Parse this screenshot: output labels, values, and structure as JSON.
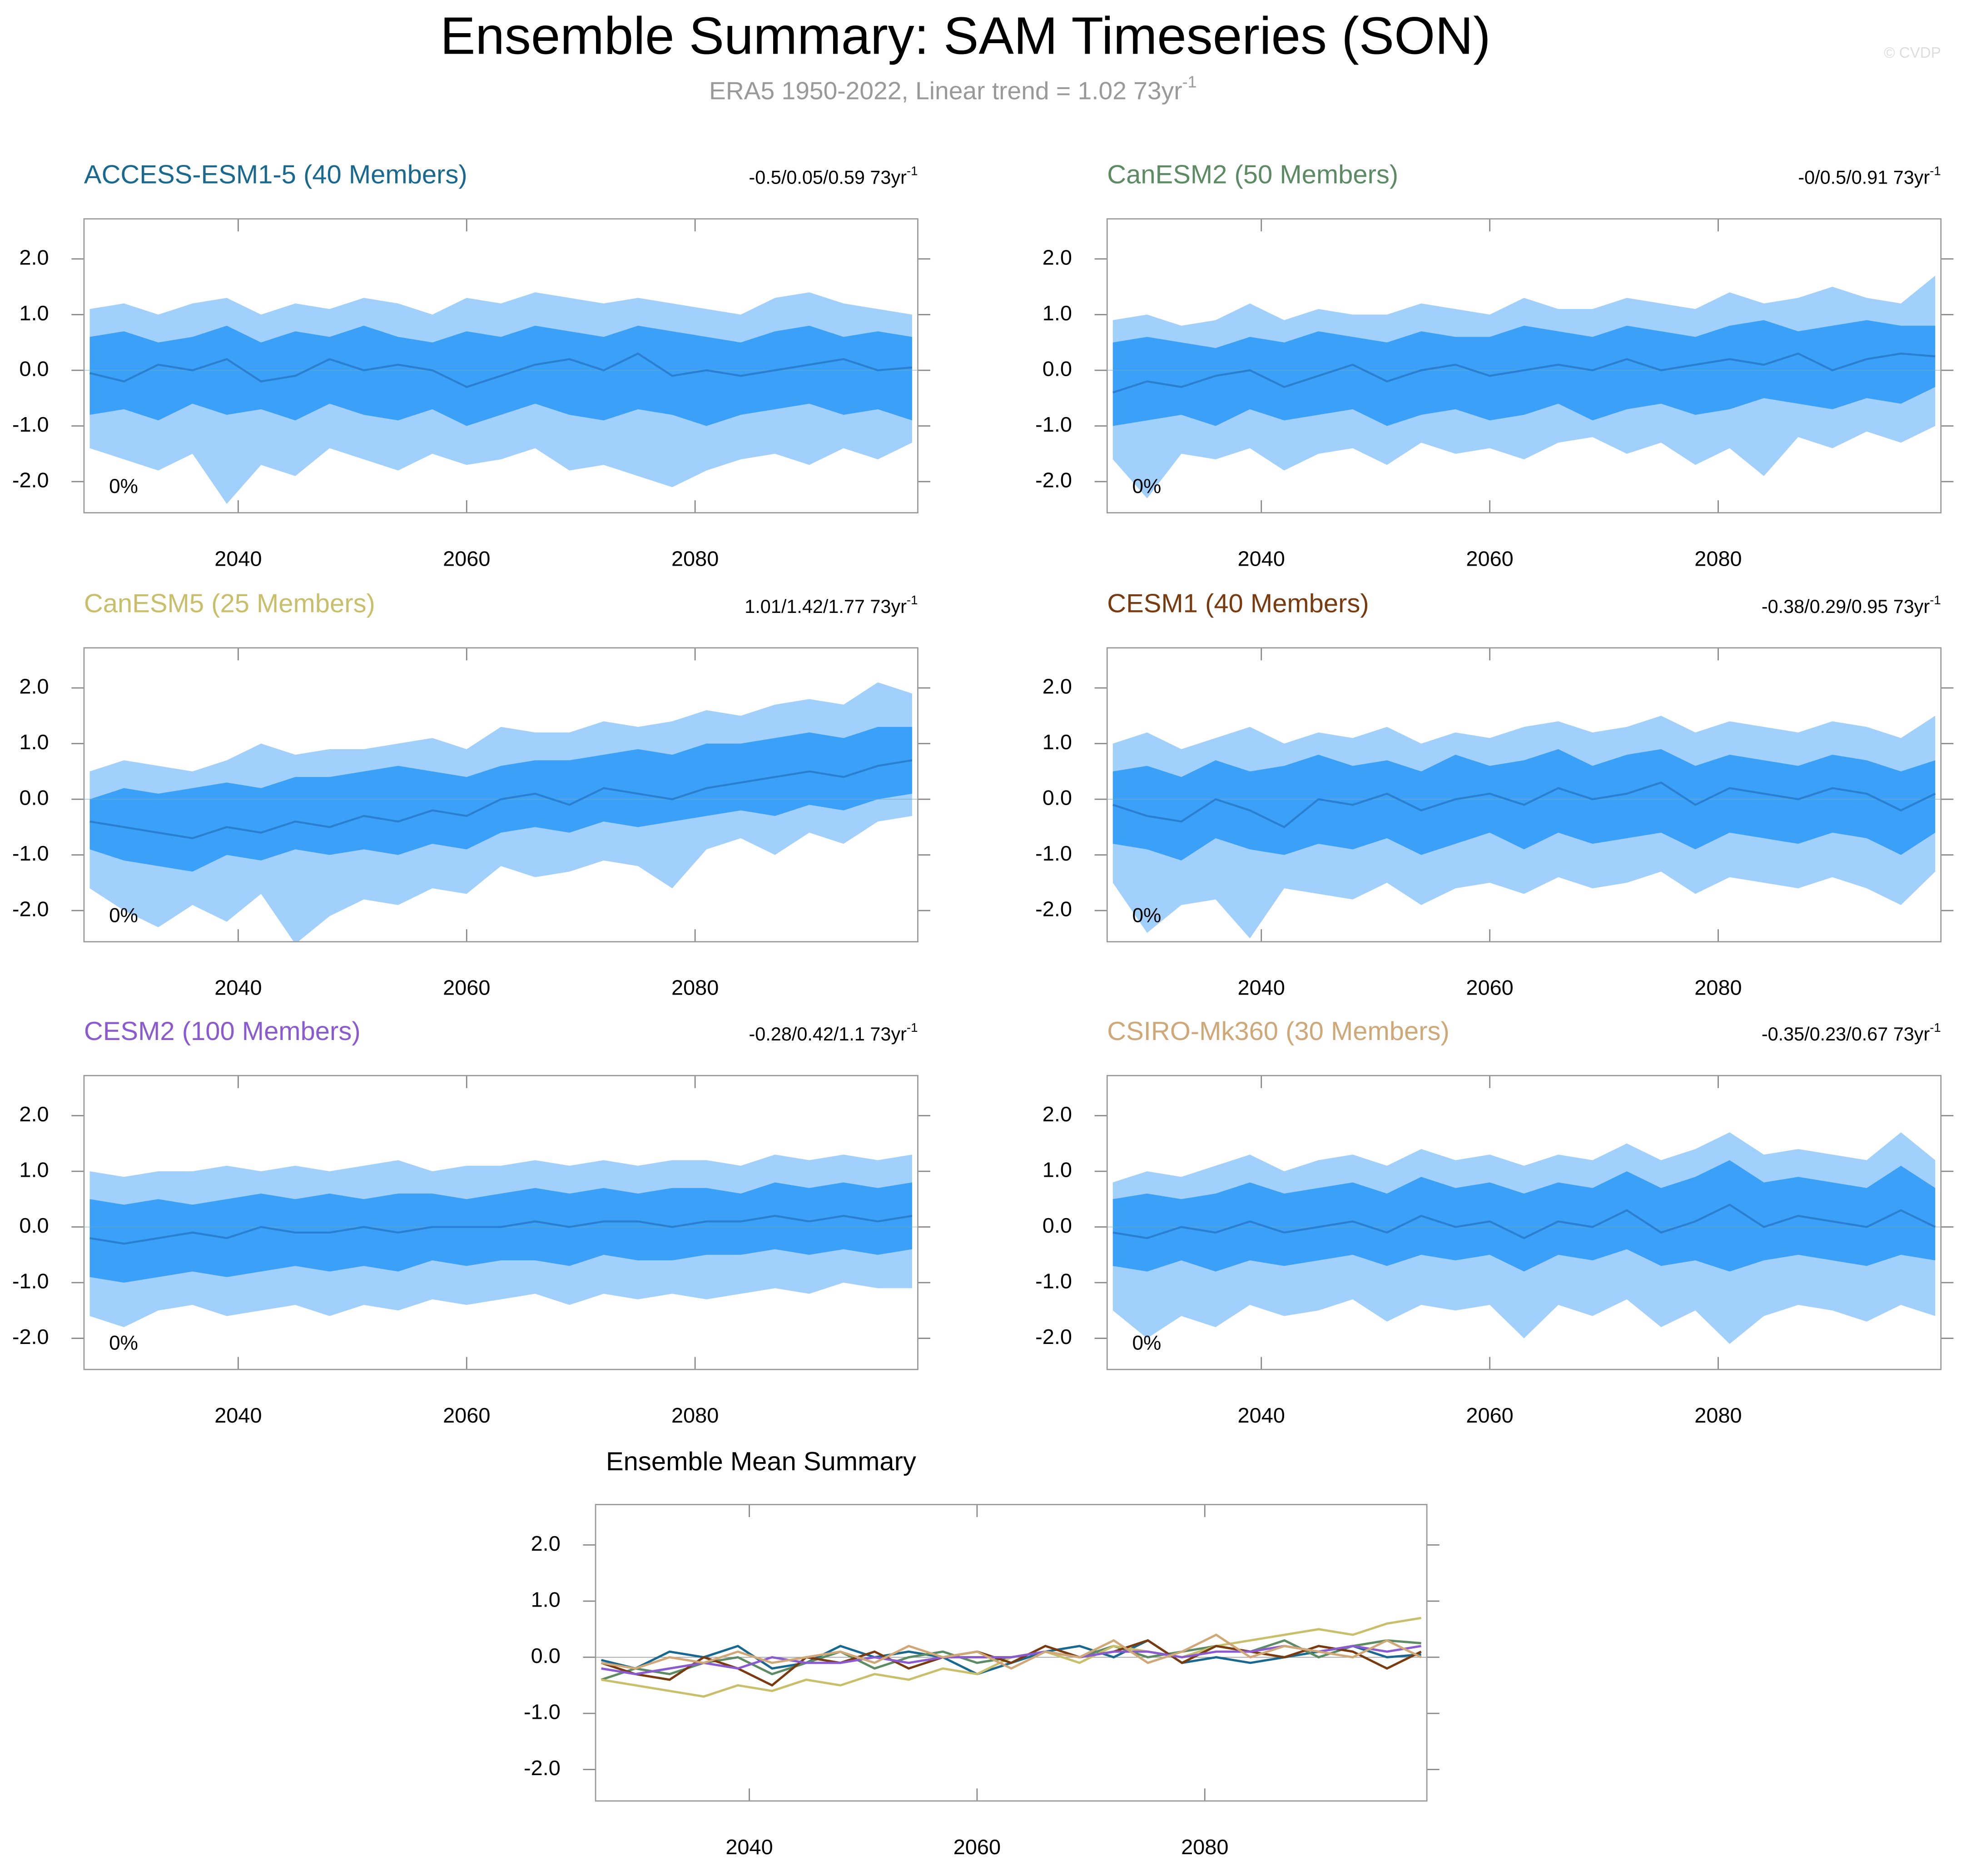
{
  "title": "Ensemble Summary: SAM Timeseries (SON)",
  "subtitle": "ERA5 1950-2022, Linear trend = 1.02 73yr",
  "subtitle_exponent": "-1",
  "watermark": "© CVDP",
  "band_colors": {
    "outer": "#a0d0fb",
    "inner": "#3ba0f8",
    "mean": "#2b7fd0"
  },
  "chart_data": [
    {
      "type": "band",
      "title": "ACCESS-ESM1-5 (40 Members)",
      "title_color": "#19688f",
      "trend": "-0.5/0.05/0.59 73yr",
      "trend_exponent": "-1",
      "note": "0%",
      "xlim": [
        2026.5,
        2099.5
      ],
      "xticks": [
        2040,
        2060,
        2080
      ],
      "ylim": [
        -2.56,
        2.72
      ],
      "yticks": [
        {
          "value": -2,
          "label": "-2.0"
        },
        {
          "value": -1,
          "label": "-1.0"
        },
        {
          "value": 0,
          "label": "0.0"
        },
        {
          "value": 1,
          "label": "1.0"
        },
        {
          "value": 2,
          "label": "2.0"
        }
      ],
      "x": [
        2027,
        2030,
        2033,
        2036,
        2039,
        2042,
        2045,
        2048,
        2051,
        2054,
        2057,
        2060,
        2063,
        2066,
        2069,
        2072,
        2075,
        2078,
        2081,
        2084,
        2087,
        2090,
        2093,
        2096,
        2099
      ],
      "mean": [
        -0.05,
        -0.2,
        0.1,
        0.0,
        0.2,
        -0.2,
        -0.1,
        0.2,
        0.0,
        0.1,
        0.0,
        -0.3,
        -0.1,
        0.1,
        0.2,
        0.0,
        0.3,
        -0.1,
        0.0,
        -0.1,
        0.0,
        0.1,
        0.2,
        0.0,
        0.05
      ],
      "inner_high": [
        0.6,
        0.7,
        0.5,
        0.6,
        0.8,
        0.5,
        0.7,
        0.6,
        0.8,
        0.6,
        0.5,
        0.7,
        0.6,
        0.8,
        0.7,
        0.6,
        0.8,
        0.7,
        0.6,
        0.5,
        0.7,
        0.8,
        0.6,
        0.7,
        0.6
      ],
      "inner_low": [
        -0.8,
        -0.7,
        -0.9,
        -0.6,
        -0.8,
        -0.7,
        -0.9,
        -0.6,
        -0.8,
        -0.9,
        -0.7,
        -1.0,
        -0.8,
        -0.6,
        -0.8,
        -0.9,
        -0.7,
        -0.8,
        -1.0,
        -0.8,
        -0.7,
        -0.6,
        -0.8,
        -0.7,
        -0.9
      ],
      "outer_high": [
        1.1,
        1.2,
        1.0,
        1.2,
        1.3,
        1.0,
        1.2,
        1.1,
        1.3,
        1.2,
        1.0,
        1.3,
        1.2,
        1.4,
        1.3,
        1.2,
        1.3,
        1.2,
        1.1,
        1.0,
        1.3,
        1.4,
        1.2,
        1.1,
        1.0
      ],
      "outer_low": [
        -1.4,
        -1.6,
        -1.8,
        -1.5,
        -2.4,
        -1.7,
        -1.9,
        -1.4,
        -1.6,
        -1.8,
        -1.5,
        -1.7,
        -1.6,
        -1.4,
        -1.8,
        -1.7,
        -1.9,
        -2.1,
        -1.8,
        -1.6,
        -1.5,
        -1.7,
        -1.4,
        -1.6,
        -1.3
      ]
    },
    {
      "type": "band",
      "title": "CanESM2 (50 Members)",
      "title_color": "#5b8a63",
      "trend": "-0/0.5/0.91 73yr",
      "trend_exponent": "-1",
      "note": "0%",
      "xlim": [
        2026.5,
        2099.5
      ],
      "xticks": [
        2040,
        2060,
        2080
      ],
      "ylim": [
        -2.56,
        2.72
      ],
      "yticks": [
        {
          "value": -2,
          "label": "-2.0"
        },
        {
          "value": -1,
          "label": "-1.0"
        },
        {
          "value": 0,
          "label": "0.0"
        },
        {
          "value": 1,
          "label": "1.0"
        },
        {
          "value": 2,
          "label": "2.0"
        }
      ],
      "x": [
        2027,
        2030,
        2033,
        2036,
        2039,
        2042,
        2045,
        2048,
        2051,
        2054,
        2057,
        2060,
        2063,
        2066,
        2069,
        2072,
        2075,
        2078,
        2081,
        2084,
        2087,
        2090,
        2093,
        2096,
        2099
      ],
      "mean": [
        -0.4,
        -0.2,
        -0.3,
        -0.1,
        0.0,
        -0.3,
        -0.1,
        0.1,
        -0.2,
        0.0,
        0.1,
        -0.1,
        0.0,
        0.1,
        0.0,
        0.2,
        0.0,
        0.1,
        0.2,
        0.1,
        0.3,
        0.0,
        0.2,
        0.3,
        0.25
      ],
      "inner_high": [
        0.5,
        0.6,
        0.5,
        0.4,
        0.6,
        0.5,
        0.7,
        0.6,
        0.5,
        0.7,
        0.6,
        0.6,
        0.8,
        0.7,
        0.6,
        0.8,
        0.7,
        0.6,
        0.8,
        0.9,
        0.7,
        0.8,
        0.9,
        0.8,
        0.8
      ],
      "inner_low": [
        -1.0,
        -0.9,
        -0.8,
        -1.0,
        -0.7,
        -0.9,
        -0.8,
        -0.7,
        -1.0,
        -0.8,
        -0.7,
        -0.9,
        -0.8,
        -0.6,
        -0.9,
        -0.7,
        -0.6,
        -0.8,
        -0.7,
        -0.5,
        -0.6,
        -0.7,
        -0.5,
        -0.6,
        -0.3
      ],
      "outer_high": [
        0.9,
        1.0,
        0.8,
        0.9,
        1.2,
        0.9,
        1.1,
        1.0,
        1.0,
        1.2,
        1.1,
        1.0,
        1.3,
        1.1,
        1.1,
        1.3,
        1.2,
        1.1,
        1.4,
        1.2,
        1.3,
        1.5,
        1.3,
        1.2,
        1.7
      ],
      "outer_low": [
        -1.6,
        -2.3,
        -1.5,
        -1.6,
        -1.4,
        -1.8,
        -1.5,
        -1.4,
        -1.7,
        -1.3,
        -1.5,
        -1.4,
        -1.6,
        -1.3,
        -1.2,
        -1.5,
        -1.3,
        -1.7,
        -1.4,
        -1.9,
        -1.2,
        -1.4,
        -1.1,
        -1.3,
        -1.0
      ]
    },
    {
      "type": "band",
      "title": "CanESM5 (25 Members)",
      "title_color": "#c9bf6a",
      "trend": "1.01/1.42/1.77 73yr",
      "trend_exponent": "-1",
      "note": "0%",
      "xlim": [
        2026.5,
        2099.5
      ],
      "xticks": [
        2040,
        2060,
        2080
      ],
      "ylim": [
        -2.56,
        2.72
      ],
      "yticks": [
        {
          "value": -2,
          "label": "-2.0"
        },
        {
          "value": -1,
          "label": "-1.0"
        },
        {
          "value": 0,
          "label": "0.0"
        },
        {
          "value": 1,
          "label": "1.0"
        },
        {
          "value": 2,
          "label": "2.0"
        }
      ],
      "x": [
        2027,
        2030,
        2033,
        2036,
        2039,
        2042,
        2045,
        2048,
        2051,
        2054,
        2057,
        2060,
        2063,
        2066,
        2069,
        2072,
        2075,
        2078,
        2081,
        2084,
        2087,
        2090,
        2093,
        2096,
        2099
      ],
      "mean": [
        -0.4,
        -0.5,
        -0.6,
        -0.7,
        -0.5,
        -0.6,
        -0.4,
        -0.5,
        -0.3,
        -0.4,
        -0.2,
        -0.3,
        0.0,
        0.1,
        -0.1,
        0.2,
        0.1,
        0.0,
        0.2,
        0.3,
        0.4,
        0.5,
        0.4,
        0.6,
        0.7
      ],
      "inner_high": [
        0.0,
        0.2,
        0.1,
        0.2,
        0.3,
        0.2,
        0.4,
        0.4,
        0.5,
        0.6,
        0.5,
        0.4,
        0.6,
        0.7,
        0.7,
        0.8,
        0.9,
        0.8,
        1.0,
        1.0,
        1.1,
        1.2,
        1.1,
        1.3,
        1.3
      ],
      "inner_low": [
        -0.9,
        -1.1,
        -1.2,
        -1.3,
        -1.0,
        -1.1,
        -0.9,
        -1.0,
        -0.9,
        -1.0,
        -0.8,
        -0.9,
        -0.6,
        -0.5,
        -0.6,
        -0.4,
        -0.5,
        -0.4,
        -0.3,
        -0.2,
        -0.3,
        -0.1,
        -0.2,
        0.0,
        0.1
      ],
      "outer_high": [
        0.5,
        0.7,
        0.6,
        0.5,
        0.7,
        1.0,
        0.8,
        0.9,
        0.9,
        1.0,
        1.1,
        0.9,
        1.3,
        1.2,
        1.2,
        1.4,
        1.3,
        1.4,
        1.6,
        1.5,
        1.7,
        1.8,
        1.7,
        2.1,
        1.9
      ],
      "outer_low": [
        -1.6,
        -2.0,
        -2.3,
        -1.9,
        -2.2,
        -1.7,
        -2.6,
        -2.1,
        -1.8,
        -1.9,
        -1.6,
        -1.7,
        -1.2,
        -1.4,
        -1.3,
        -1.1,
        -1.2,
        -1.6,
        -0.9,
        -0.7,
        -1.0,
        -0.6,
        -0.8,
        -0.4,
        -0.3
      ]
    },
    {
      "type": "band",
      "title": "CESM1 (40 Members)",
      "title_color": "#7a3a10",
      "trend": "-0.38/0.29/0.95 73yr",
      "trend_exponent": "-1",
      "note": "0%",
      "xlim": [
        2026.5,
        2099.5
      ],
      "xticks": [
        2040,
        2060,
        2080
      ],
      "ylim": [
        -2.56,
        2.72
      ],
      "yticks": [
        {
          "value": -2,
          "label": "-2.0"
        },
        {
          "value": -1,
          "label": "-1.0"
        },
        {
          "value": 0,
          "label": "0.0"
        },
        {
          "value": 1,
          "label": "1.0"
        },
        {
          "value": 2,
          "label": "2.0"
        }
      ],
      "x": [
        2027,
        2030,
        2033,
        2036,
        2039,
        2042,
        2045,
        2048,
        2051,
        2054,
        2057,
        2060,
        2063,
        2066,
        2069,
        2072,
        2075,
        2078,
        2081,
        2084,
        2087,
        2090,
        2093,
        2096,
        2099
      ],
      "mean": [
        -0.1,
        -0.3,
        -0.4,
        0.0,
        -0.2,
        -0.5,
        0.0,
        -0.1,
        0.1,
        -0.2,
        0.0,
        0.1,
        -0.1,
        0.2,
        0.0,
        0.1,
        0.3,
        -0.1,
        0.2,
        0.1,
        0.0,
        0.2,
        0.1,
        -0.2,
        0.1
      ],
      "inner_high": [
        0.5,
        0.6,
        0.4,
        0.7,
        0.5,
        0.6,
        0.8,
        0.6,
        0.7,
        0.5,
        0.8,
        0.6,
        0.7,
        0.9,
        0.6,
        0.8,
        0.9,
        0.6,
        0.8,
        0.7,
        0.6,
        0.8,
        0.7,
        0.5,
        0.7
      ],
      "inner_low": [
        -0.8,
        -0.9,
        -1.1,
        -0.7,
        -0.9,
        -1.0,
        -0.8,
        -0.9,
        -0.7,
        -1.0,
        -0.8,
        -0.6,
        -0.9,
        -0.6,
        -0.8,
        -0.7,
        -0.6,
        -0.9,
        -0.6,
        -0.7,
        -0.8,
        -0.6,
        -0.7,
        -1.0,
        -0.6
      ],
      "outer_high": [
        1.0,
        1.2,
        0.9,
        1.1,
        1.3,
        1.0,
        1.2,
        1.1,
        1.3,
        1.0,
        1.2,
        1.1,
        1.3,
        1.4,
        1.2,
        1.3,
        1.5,
        1.2,
        1.4,
        1.3,
        1.2,
        1.4,
        1.3,
        1.1,
        1.5
      ],
      "outer_low": [
        -1.5,
        -2.4,
        -1.9,
        -1.8,
        -2.5,
        -1.6,
        -1.7,
        -1.8,
        -1.5,
        -1.9,
        -1.6,
        -1.5,
        -1.7,
        -1.4,
        -1.6,
        -1.5,
        -1.3,
        -1.7,
        -1.4,
        -1.5,
        -1.6,
        -1.4,
        -1.6,
        -1.9,
        -1.3
      ]
    },
    {
      "type": "band",
      "title": "CESM2 (100 Members)",
      "title_color": "#8a5ad0",
      "trend": "-0.28/0.42/1.1 73yr",
      "trend_exponent": "-1",
      "note": "0%",
      "xlim": [
        2026.5,
        2099.5
      ],
      "xticks": [
        2040,
        2060,
        2080
      ],
      "ylim": [
        -2.56,
        2.72
      ],
      "yticks": [
        {
          "value": -2,
          "label": "-2.0"
        },
        {
          "value": -1,
          "label": "-1.0"
        },
        {
          "value": 0,
          "label": "0.0"
        },
        {
          "value": 1,
          "label": "1.0"
        },
        {
          "value": 2,
          "label": "2.0"
        }
      ],
      "x": [
        2027,
        2030,
        2033,
        2036,
        2039,
        2042,
        2045,
        2048,
        2051,
        2054,
        2057,
        2060,
        2063,
        2066,
        2069,
        2072,
        2075,
        2078,
        2081,
        2084,
        2087,
        2090,
        2093,
        2096,
        2099
      ],
      "mean": [
        -0.2,
        -0.3,
        -0.2,
        -0.1,
        -0.2,
        0.0,
        -0.1,
        -0.1,
        0.0,
        -0.1,
        0.0,
        0.0,
        0.0,
        0.1,
        0.0,
        0.1,
        0.1,
        0.0,
        0.1,
        0.1,
        0.2,
        0.1,
        0.2,
        0.1,
        0.2
      ],
      "inner_high": [
        0.5,
        0.4,
        0.5,
        0.4,
        0.5,
        0.6,
        0.5,
        0.6,
        0.5,
        0.6,
        0.6,
        0.5,
        0.6,
        0.7,
        0.6,
        0.7,
        0.6,
        0.7,
        0.7,
        0.6,
        0.8,
        0.7,
        0.8,
        0.7,
        0.8
      ],
      "inner_low": [
        -0.9,
        -1.0,
        -0.9,
        -0.8,
        -0.9,
        -0.8,
        -0.7,
        -0.8,
        -0.7,
        -0.8,
        -0.6,
        -0.7,
        -0.6,
        -0.6,
        -0.7,
        -0.5,
        -0.6,
        -0.6,
        -0.5,
        -0.5,
        -0.4,
        -0.5,
        -0.4,
        -0.5,
        -0.4
      ],
      "outer_high": [
        1.0,
        0.9,
        1.0,
        1.0,
        1.1,
        1.0,
        1.1,
        1.0,
        1.1,
        1.2,
        1.0,
        1.1,
        1.1,
        1.2,
        1.1,
        1.2,
        1.1,
        1.2,
        1.2,
        1.1,
        1.3,
        1.2,
        1.3,
        1.2,
        1.3
      ],
      "outer_low": [
        -1.6,
        -1.8,
        -1.5,
        -1.4,
        -1.6,
        -1.5,
        -1.4,
        -1.6,
        -1.4,
        -1.5,
        -1.3,
        -1.4,
        -1.3,
        -1.2,
        -1.4,
        -1.2,
        -1.3,
        -1.2,
        -1.3,
        -1.2,
        -1.1,
        -1.2,
        -1.0,
        -1.1,
        -1.1
      ]
    },
    {
      "type": "band",
      "title": "CSIRO-Mk360 (30 Members)",
      "title_color": "#d0a878",
      "trend": "-0.35/0.23/0.67 73yr",
      "trend_exponent": "-1",
      "note": "0%",
      "xlim": [
        2026.5,
        2099.5
      ],
      "xticks": [
        2040,
        2060,
        2080
      ],
      "ylim": [
        -2.56,
        2.72
      ],
      "yticks": [
        {
          "value": -2,
          "label": "-2.0"
        },
        {
          "value": -1,
          "label": "-1.0"
        },
        {
          "value": 0,
          "label": "0.0"
        },
        {
          "value": 1,
          "label": "1.0"
        },
        {
          "value": 2,
          "label": "2.0"
        }
      ],
      "x": [
        2027,
        2030,
        2033,
        2036,
        2039,
        2042,
        2045,
        2048,
        2051,
        2054,
        2057,
        2060,
        2063,
        2066,
        2069,
        2072,
        2075,
        2078,
        2081,
        2084,
        2087,
        2090,
        2093,
        2096,
        2099
      ],
      "mean": [
        -0.1,
        -0.2,
        0.0,
        -0.1,
        0.1,
        -0.1,
        0.0,
        0.1,
        -0.1,
        0.2,
        0.0,
        0.1,
        -0.2,
        0.1,
        0.0,
        0.3,
        -0.1,
        0.1,
        0.4,
        0.0,
        0.2,
        0.1,
        0.0,
        0.3,
        0.0
      ],
      "inner_high": [
        0.5,
        0.6,
        0.5,
        0.6,
        0.8,
        0.6,
        0.7,
        0.8,
        0.6,
        0.9,
        0.7,
        0.8,
        0.6,
        0.8,
        0.7,
        1.0,
        0.7,
        0.9,
        1.2,
        0.8,
        0.9,
        0.8,
        0.7,
        1.1,
        0.7
      ],
      "inner_low": [
        -0.7,
        -0.8,
        -0.6,
        -0.8,
        -0.6,
        -0.7,
        -0.6,
        -0.5,
        -0.7,
        -0.5,
        -0.6,
        -0.5,
        -0.8,
        -0.5,
        -0.6,
        -0.4,
        -0.7,
        -0.6,
        -0.8,
        -0.6,
        -0.5,
        -0.6,
        -0.7,
        -0.5,
        -0.6
      ],
      "outer_high": [
        0.8,
        1.0,
        0.9,
        1.1,
        1.3,
        1.0,
        1.2,
        1.3,
        1.1,
        1.4,
        1.2,
        1.3,
        1.1,
        1.3,
        1.2,
        1.5,
        1.2,
        1.4,
        1.7,
        1.3,
        1.4,
        1.3,
        1.2,
        1.7,
        1.2
      ],
      "outer_low": [
        -1.5,
        -2.0,
        -1.6,
        -1.8,
        -1.4,
        -1.6,
        -1.5,
        -1.3,
        -1.7,
        -1.4,
        -1.5,
        -1.4,
        -2.0,
        -1.4,
        -1.6,
        -1.3,
        -1.8,
        -1.5,
        -2.1,
        -1.6,
        -1.4,
        -1.5,
        -1.7,
        -1.4,
        -1.6
      ]
    },
    {
      "type": "line",
      "title": "Ensemble Mean Summary",
      "xlim": [
        2026.5,
        2099.5
      ],
      "xticks": [
        2040,
        2060,
        2080
      ],
      "ylim": [
        -2.56,
        2.72
      ],
      "yticks": [
        {
          "value": -2,
          "label": "-2.0"
        },
        {
          "value": -1,
          "label": "-1.0"
        },
        {
          "value": 0,
          "label": "0.0"
        },
        {
          "value": 1,
          "label": "1.0"
        },
        {
          "value": 2,
          "label": "2.0"
        }
      ]
    }
  ]
}
